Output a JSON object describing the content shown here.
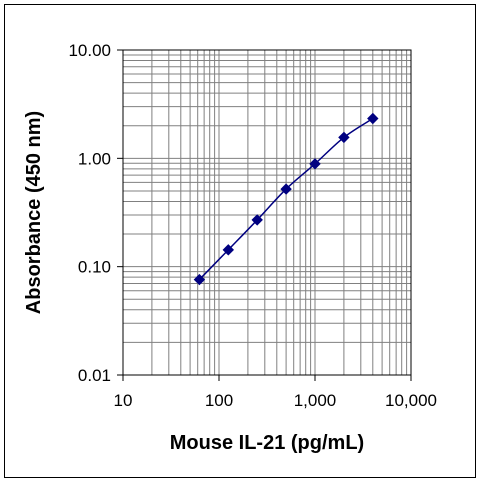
{
  "chart_data": {
    "type": "line",
    "title": "",
    "xlabel": "Mouse IL-21 (pg/mL)",
    "ylabel": "Absorbance (450 nm)",
    "x_scale": "log",
    "y_scale": "log",
    "xlim": [
      10,
      10000
    ],
    "ylim": [
      0.01,
      10
    ],
    "grid": true,
    "x_tick_labels": [
      "10",
      "100",
      "1,000",
      "10,000"
    ],
    "y_tick_labels": [
      "10.00",
      "1.00",
      "0.10",
      "0.01"
    ],
    "series": [
      {
        "x": [
          62.5,
          125,
          250,
          500,
          1000,
          2000,
          4000
        ],
        "y": [
          0.076,
          0.143,
          0.27,
          0.52,
          0.89,
          1.56,
          2.33
        ]
      }
    ],
    "colors": {
      "line": "#000080",
      "marker": "#000080",
      "grid": "#808080"
    }
  }
}
